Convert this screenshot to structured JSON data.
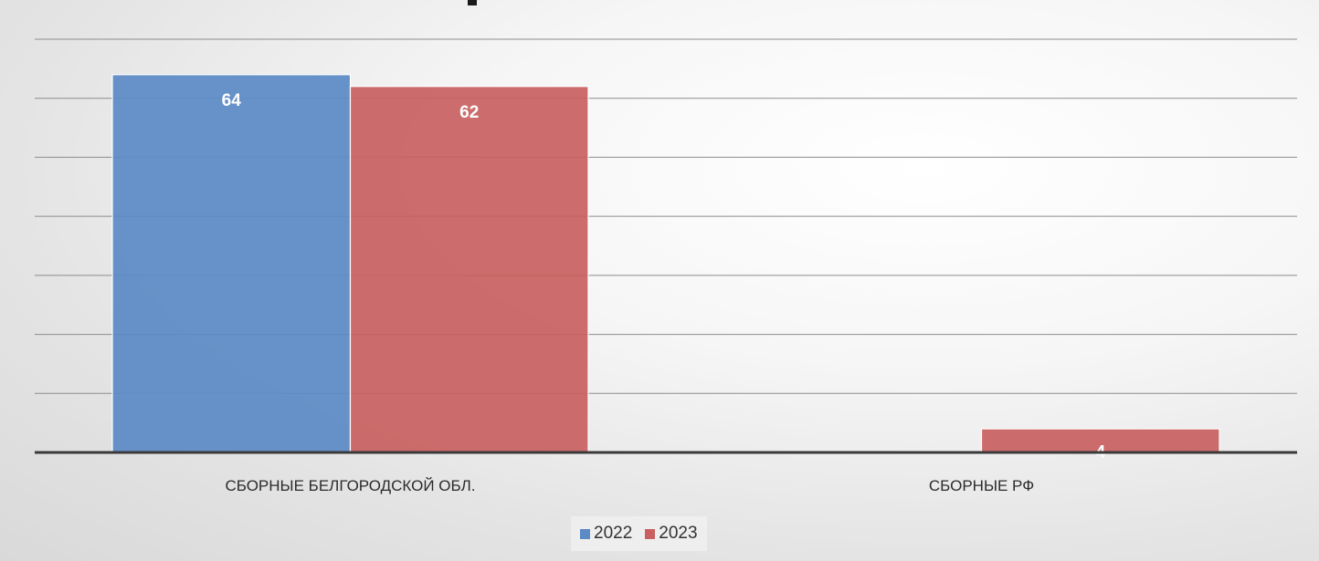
{
  "chart_data": {
    "type": "bar",
    "title": "",
    "categories": [
      "СБОРНЫЕ БЕЛГОРОДСКОЙ ОБЛ.",
      "СБОРНЫЕ РФ"
    ],
    "series": [
      {
        "name": "2022",
        "values": [
          64,
          0
        ],
        "color": "#5b8ac5"
      },
      {
        "name": "2023",
        "values": [
          62,
          4
        ],
        "color": "#c95f5f"
      }
    ],
    "data_labels": [
      [
        "64",
        null
      ],
      [
        "62",
        "4"
      ]
    ],
    "ylim": [
      0,
      70
    ],
    "grid": true,
    "legend": "bottom"
  }
}
